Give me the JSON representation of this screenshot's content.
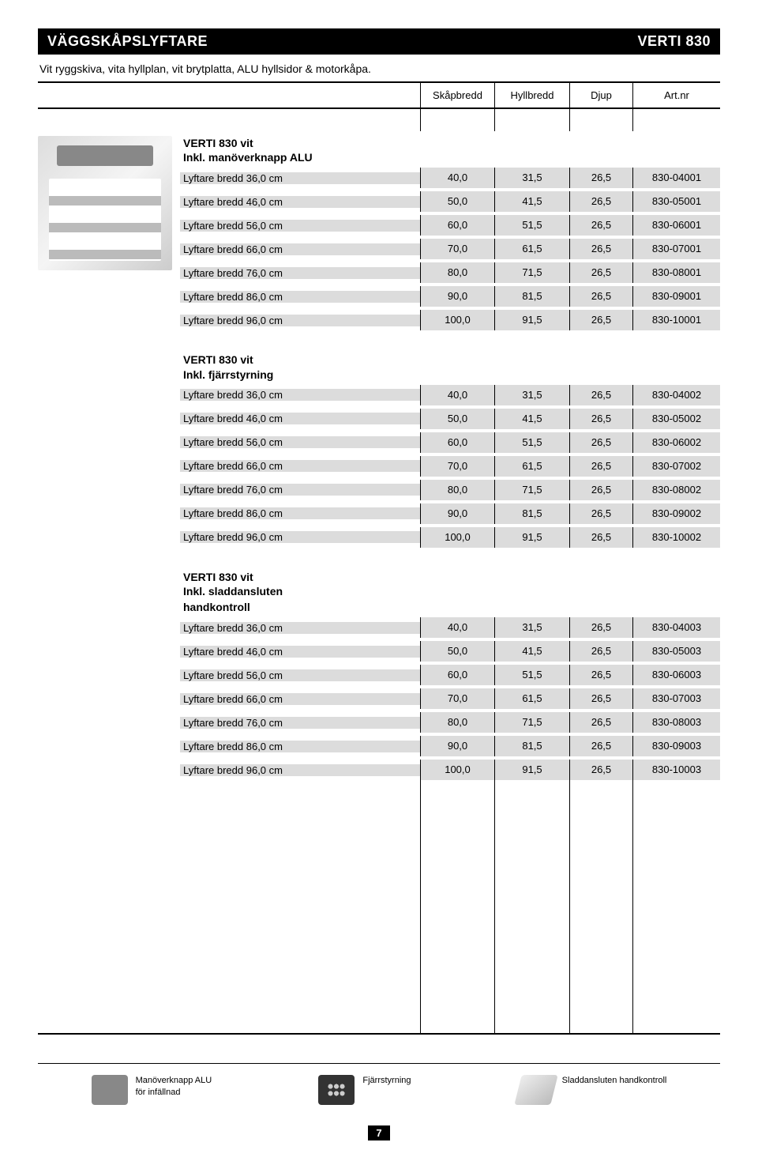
{
  "titlebar": {
    "left": "VÄGGSKÅPSLYFTARE",
    "right": "VERTI 830"
  },
  "subtitle": "Vit ryggskiva, vita hyllplan, vit brytplatta, ALU hyllsidor & motorkåpa.",
  "columns": {
    "c1": "Skåpbredd",
    "c2": "Hyllbredd",
    "c3": "Djup",
    "c4": "Art.nr"
  },
  "sections": [
    {
      "title": "VERTI 830 vit",
      "sub": "Inkl. manöverknapp ALU",
      "rows": [
        {
          "label": "Lyftare bredd 36,0 cm",
          "v1": "40,0",
          "v2": "31,5",
          "v3": "26,5",
          "v4": "830-04001"
        },
        {
          "label": "Lyftare bredd 46,0 cm",
          "v1": "50,0",
          "v2": "41,5",
          "v3": "26,5",
          "v4": "830-05001"
        },
        {
          "label": "Lyftare bredd 56,0 cm",
          "v1": "60,0",
          "v2": "51,5",
          "v3": "26,5",
          "v4": "830-06001"
        },
        {
          "label": "Lyftare bredd 66,0 cm",
          "v1": "70,0",
          "v2": "61,5",
          "v3": "26,5",
          "v4": "830-07001"
        },
        {
          "label": "Lyftare bredd 76,0 cm",
          "v1": "80,0",
          "v2": "71,5",
          "v3": "26,5",
          "v4": "830-08001"
        },
        {
          "label": "Lyftare bredd 86,0 cm",
          "v1": "90,0",
          "v2": "81,5",
          "v3": "26,5",
          "v4": "830-09001"
        },
        {
          "label": "Lyftare bredd 96,0 cm",
          "v1": "100,0",
          "v2": "91,5",
          "v3": "26,5",
          "v4": "830-10001"
        }
      ]
    },
    {
      "title": "VERTI 830 vit",
      "sub": "Inkl. fjärrstyrning",
      "rows": [
        {
          "label": "Lyftare bredd 36,0 cm",
          "v1": "40,0",
          "v2": "31,5",
          "v3": "26,5",
          "v4": "830-04002"
        },
        {
          "label": "Lyftare bredd 46,0 cm",
          "v1": "50,0",
          "v2": "41,5",
          "v3": "26,5",
          "v4": "830-05002"
        },
        {
          "label": "Lyftare bredd 56,0 cm",
          "v1": "60,0",
          "v2": "51,5",
          "v3": "26,5",
          "v4": "830-06002"
        },
        {
          "label": "Lyftare bredd 66,0 cm",
          "v1": "70,0",
          "v2": "61,5",
          "v3": "26,5",
          "v4": "830-07002"
        },
        {
          "label": "Lyftare bredd 76,0 cm",
          "v1": "80,0",
          "v2": "71,5",
          "v3": "26,5",
          "v4": "830-08002"
        },
        {
          "label": "Lyftare bredd 86,0 cm",
          "v1": "90,0",
          "v2": "81,5",
          "v3": "26,5",
          "v4": "830-09002"
        },
        {
          "label": "Lyftare bredd 96,0 cm",
          "v1": "100,0",
          "v2": "91,5",
          "v3": "26,5",
          "v4": "830-10002"
        }
      ]
    },
    {
      "title": "VERTI 830 vit",
      "sub": "Inkl. sladdansluten",
      "sub2": "handkontroll",
      "rows": [
        {
          "label": "Lyftare bredd 36,0 cm",
          "v1": "40,0",
          "v2": "31,5",
          "v3": "26,5",
          "v4": "830-04003"
        },
        {
          "label": "Lyftare bredd 46,0 cm",
          "v1": "50,0",
          "v2": "41,5",
          "v3": "26,5",
          "v4": "830-05003"
        },
        {
          "label": "Lyftare bredd 56,0 cm",
          "v1": "60,0",
          "v2": "51,5",
          "v3": "26,5",
          "v4": "830-06003"
        },
        {
          "label": "Lyftare bredd 66,0 cm",
          "v1": "70,0",
          "v2": "61,5",
          "v3": "26,5",
          "v4": "830-07003"
        },
        {
          "label": "Lyftare bredd 76,0 cm",
          "v1": "80,0",
          "v2": "71,5",
          "v3": "26,5",
          "v4": "830-08003"
        },
        {
          "label": "Lyftare bredd 86,0 cm",
          "v1": "90,0",
          "v2": "81,5",
          "v3": "26,5",
          "v4": "830-09003"
        },
        {
          "label": "Lyftare bredd 96,0 cm",
          "v1": "100,0",
          "v2": "91,5",
          "v3": "26,5",
          "v4": "830-10003"
        }
      ]
    }
  ],
  "footer": {
    "i1a": "Manöverknapp ALU",
    "i1b": "för infällnad",
    "i2": "Fjärrstyrning",
    "i3": "Sladdansluten handkontroll"
  },
  "page_number": "7",
  "style": {
    "shade_color": "#dcdcdc",
    "titlebar_bg": "#000000",
    "titlebar_fg": "#ffffff",
    "border_color": "#000000",
    "font_body": 13,
    "font_title": 18
  }
}
